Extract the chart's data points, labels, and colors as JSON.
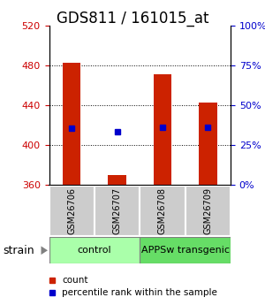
{
  "title": "GDS811 / 161015_at",
  "samples": [
    "GSM26706",
    "GSM26707",
    "GSM26708",
    "GSM26709"
  ],
  "bar_bottoms": [
    360,
    360,
    360,
    360
  ],
  "bar_tops": [
    483,
    370,
    471,
    443
  ],
  "blue_values": [
    417,
    413,
    418,
    418
  ],
  "ylim": [
    360,
    520
  ],
  "yticks_left": [
    360,
    400,
    440,
    480,
    520
  ],
  "yticks_right": [
    0,
    25,
    50,
    75,
    100
  ],
  "ylabel_left_color": "#cc0000",
  "ylabel_right_color": "#0000cc",
  "bar_color": "#cc2200",
  "blue_color": "#0000cc",
  "groups": [
    {
      "label": "control",
      "samples": [
        0,
        1
      ],
      "color": "#aaffaa"
    },
    {
      "label": "APPSw transgenic",
      "samples": [
        2,
        3
      ],
      "color": "#66dd66"
    }
  ],
  "strain_label": "strain",
  "legend": [
    {
      "color": "#cc2200",
      "label": "count"
    },
    {
      "color": "#0000cc",
      "label": "percentile rank within the sample"
    }
  ],
  "tick_label_area_bg": "#cccccc",
  "group_label_fontsize": 8,
  "title_fontsize": 12,
  "bar_width": 0.4
}
